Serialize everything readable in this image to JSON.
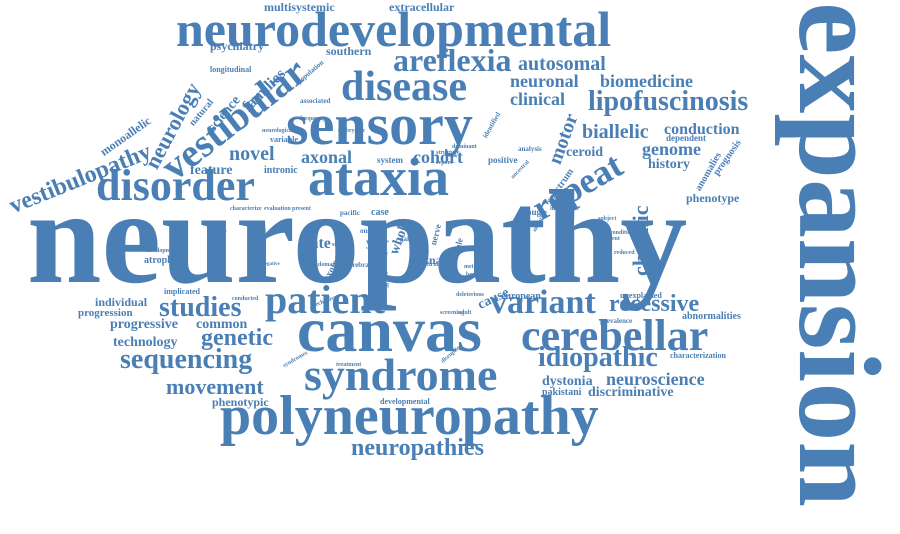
{
  "colors": {
    "word": "#4a7fb5",
    "background": "#ffffff"
  },
  "words": [
    {
      "text": "neuropathy"
    },
    {
      "text": "expansion"
    },
    {
      "text": "canvas"
    },
    {
      "text": "sensory"
    },
    {
      "text": "neurodevelopmental"
    },
    {
      "text": "ataxia"
    },
    {
      "text": "disorder"
    },
    {
      "text": "polyneuropathy"
    },
    {
      "text": "syndrome"
    },
    {
      "text": "cerebellar"
    },
    {
      "text": "patient"
    },
    {
      "text": "disease"
    },
    {
      "text": "vestibular"
    },
    {
      "text": "repeat"
    },
    {
      "text": "lipofuscinosis"
    },
    {
      "text": "areflexia"
    },
    {
      "text": "variant"
    },
    {
      "text": "neuropathies"
    },
    {
      "text": "studies"
    },
    {
      "text": "sequencing"
    },
    {
      "text": "idiopathic"
    },
    {
      "text": "genetic"
    },
    {
      "text": "recessive"
    },
    {
      "text": "movement"
    },
    {
      "text": "vestibulopathy"
    },
    {
      "text": "neurology"
    },
    {
      "text": "chronic"
    },
    {
      "text": "neuroscience"
    },
    {
      "text": "autosomal"
    },
    {
      "text": "neuronal"
    },
    {
      "text": "clinical"
    },
    {
      "text": "biomedicine"
    },
    {
      "text": "biallelic"
    },
    {
      "text": "motor"
    },
    {
      "text": "conduction"
    },
    {
      "text": "genome"
    },
    {
      "text": "cohort"
    },
    {
      "text": "novel"
    },
    {
      "text": "axonal"
    },
    {
      "text": "progressive"
    },
    {
      "text": "common"
    },
    {
      "text": "technology"
    },
    {
      "text": "feature"
    },
    {
      "text": "dystonia"
    },
    {
      "text": "discriminative"
    },
    {
      "text": "multisystemic"
    },
    {
      "text": "extracellular"
    },
    {
      "text": "psychiatry"
    },
    {
      "text": "families"
    },
    {
      "text": "science"
    },
    {
      "text": "monoallelic"
    },
    {
      "text": "southern"
    },
    {
      "text": "history"
    },
    {
      "text": "phenotype"
    },
    {
      "text": "anomalies"
    },
    {
      "text": "prognosis"
    },
    {
      "text": "ceroid"
    },
    {
      "text": "late"
    },
    {
      "text": "atrophy"
    },
    {
      "text": "individual"
    },
    {
      "text": "progression"
    },
    {
      "text": "phenotypic"
    },
    {
      "text": "natural"
    },
    {
      "text": "intronic"
    },
    {
      "text": "variable"
    },
    {
      "text": "longitudinal"
    },
    {
      "text": "cause"
    },
    {
      "text": "european"
    },
    {
      "text": "abnormalities"
    },
    {
      "text": "characterization"
    },
    {
      "text": "pakistani"
    },
    {
      "text": "whole"
    },
    {
      "text": "plxna"
    },
    {
      "text": "exome"
    },
    {
      "text": "year"
    },
    {
      "text": "cough"
    },
    {
      "text": "spectrum"
    },
    {
      "text": "system"
    },
    {
      "text": "positive"
    },
    {
      "text": "case"
    },
    {
      "text": "nerve"
    },
    {
      "text": "allele"
    },
    {
      "text": "multiple"
    },
    {
      "text": "dependent"
    },
    {
      "text": "unexplained"
    },
    {
      "text": "implicated"
    },
    {
      "text": "developmental"
    },
    {
      "text": "associated"
    },
    {
      "text": "population"
    },
    {
      "text": "additional"
    },
    {
      "text": "development"
    },
    {
      "text": "characterize"
    },
    {
      "text": "evaluation"
    },
    {
      "text": "present"
    },
    {
      "text": "neurological"
    },
    {
      "text": "embryonic"
    },
    {
      "text": "identified"
    },
    {
      "text": "analysis"
    },
    {
      "text": "inheritance"
    },
    {
      "text": "structure"
    },
    {
      "text": "pacific"
    },
    {
      "text": "prevalence"
    },
    {
      "text": "onset"
    },
    {
      "text": "motif"
    },
    {
      "text": "testing"
    },
    {
      "text": "domain"
    },
    {
      "text": "cerebral"
    },
    {
      "text": "sign"
    },
    {
      "text": "report"
    },
    {
      "text": "gait"
    },
    {
      "text": "method"
    },
    {
      "text": "bedside"
    },
    {
      "text": "ancestral"
    },
    {
      "text": "screening"
    },
    {
      "text": "deleterious"
    },
    {
      "text": "treatment"
    },
    {
      "text": "disruption"
    },
    {
      "text": "conducted"
    },
    {
      "text": "condition"
    },
    {
      "text": "syndromes"
    },
    {
      "text": "subject"
    },
    {
      "text": "negative"
    },
    {
      "text": "adult"
    },
    {
      "text": "confirm"
    },
    {
      "text": "frequency"
    },
    {
      "text": "dominant"
    },
    {
      "text": "recent"
    },
    {
      "text": "reduced"
    },
    {
      "text": "mutation"
    },
    {
      "text": "mechanism"
    }
  ]
}
